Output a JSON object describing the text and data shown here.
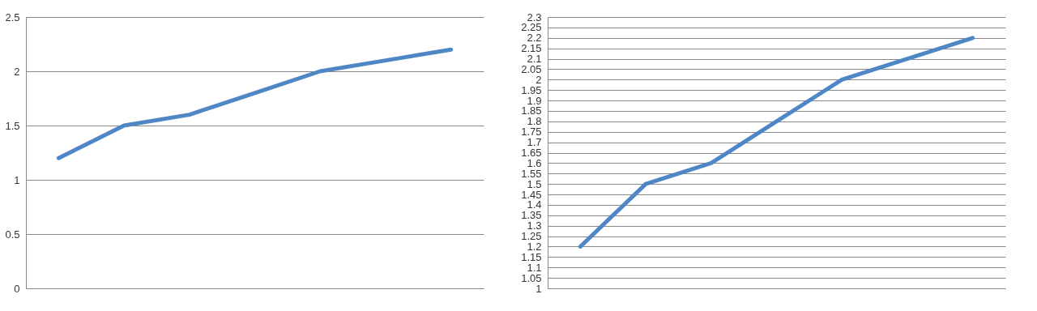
{
  "chart_data": [
    {
      "type": "line",
      "categories": [
        null,
        null,
        null,
        null,
        null,
        null,
        null
      ],
      "values": [
        1.2,
        1.5,
        1.6,
        1.8,
        2.0,
        2.1,
        2.2
      ],
      "color": "#4f86c6",
      "ylim": [
        0,
        2.5
      ],
      "yticks": [
        0,
        0.5,
        1,
        1.5,
        2,
        2.5
      ],
      "grid": "y",
      "tick_labels": "y",
      "line_style": "solid",
      "marker": "none"
    },
    {
      "type": "line",
      "categories": [
        null,
        null,
        null,
        null,
        null,
        null,
        null
      ],
      "values": [
        1.2,
        1.5,
        1.6,
        1.8,
        2.0,
        2.1,
        2.2
      ],
      "color": "#4f86c6",
      "ylim": [
        1,
        2.3
      ],
      "yticks": [
        1,
        1.05,
        1.1,
        1.15,
        1.2,
        1.25,
        1.3,
        1.35,
        1.4,
        1.45,
        1.5,
        1.55,
        1.6,
        1.65,
        1.7,
        1.75,
        1.8,
        1.85,
        1.9,
        1.95,
        2,
        2.05,
        2.1,
        2.15,
        2.2,
        2.25,
        2.3
      ],
      "grid": "y",
      "tick_labels": "y",
      "line_style": "solid",
      "marker": "none"
    }
  ]
}
